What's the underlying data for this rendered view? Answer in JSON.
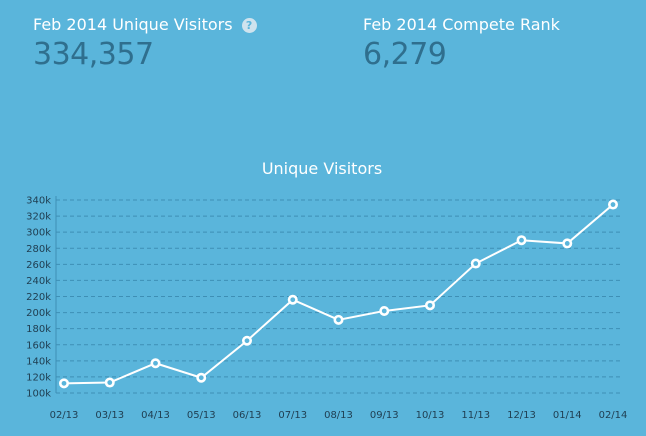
{
  "stats": {
    "visitors": {
      "label": "Feb 2014 Unique Visitors",
      "value": "334,357",
      "help_icon": "question-circle-icon"
    },
    "rank": {
      "label": "Feb 2014 Compete Rank",
      "value": "6,279"
    }
  },
  "colors": {
    "background": "#5ab5db",
    "value_text": "#2f6f8e",
    "line": "#ffffff",
    "grid": "#3e8fb5"
  },
  "chart_data": {
    "type": "line",
    "title": "Unique Visitors",
    "xlabel": "",
    "ylabel": "",
    "categories": [
      "02/13",
      "03/13",
      "04/13",
      "05/13",
      "06/13",
      "07/13",
      "08/13",
      "09/13",
      "10/13",
      "11/13",
      "12/13",
      "01/14",
      "02/14"
    ],
    "series": [
      {
        "values": [
          112000,
          113000,
          137000,
          119000,
          165000,
          216000,
          191000,
          202000,
          209000,
          261000,
          290000,
          286000,
          334357
        ]
      }
    ],
    "ylim": [
      100000,
      340000
    ],
    "yticks": [
      100000,
      120000,
      140000,
      160000,
      180000,
      200000,
      220000,
      240000,
      260000,
      280000,
      300000,
      320000,
      340000
    ],
    "ytick_labels": [
      "100k",
      "120k",
      "140k",
      "160k",
      "180k",
      "200k",
      "220k",
      "240k",
      "260k",
      "280k",
      "300k",
      "320k",
      "340k"
    ],
    "grid": true,
    "legend": "none"
  }
}
